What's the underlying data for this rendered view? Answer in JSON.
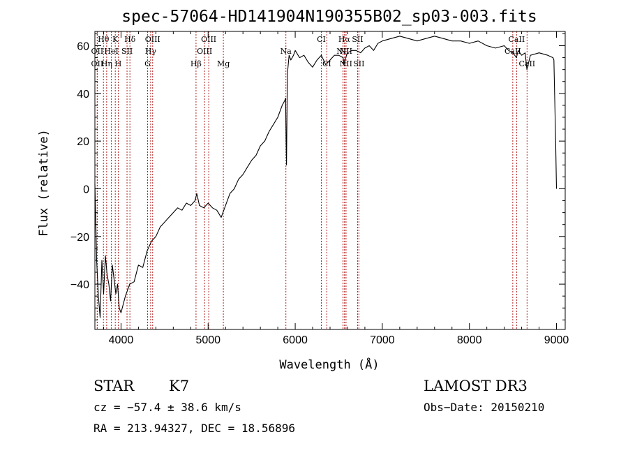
{
  "chart_data": {
    "type": "line",
    "title": "spec-57064-HD141904N190355B02_sp03-003.fits",
    "xlabel": "Wavelength (Å)",
    "ylabel": "Flux (relative)",
    "xlim": [
      3700,
      9100
    ],
    "ylim": [
      -59,
      66
    ],
    "xticks": [
      4000,
      5000,
      6000,
      7000,
      8000,
      9000
    ],
    "yticks": [
      -40,
      -20,
      0,
      20,
      40,
      60
    ],
    "grid": false,
    "series": [
      {
        "x": [
          3700,
          3720,
          3740,
          3760,
          3780,
          3800,
          3820,
          3840,
          3860,
          3880,
          3900,
          3920,
          3940,
          3960,
          3980,
          4000,
          4050,
          4100,
          4150,
          4200,
          4250,
          4300,
          4350,
          4400,
          4450,
          4500,
          4550,
          4600,
          4650,
          4700,
          4750,
          4800,
          4850,
          4870,
          4900,
          4950,
          5000,
          5050,
          5100,
          5150,
          5200,
          5250,
          5300,
          5350,
          5400,
          5450,
          5500,
          5550,
          5600,
          5650,
          5700,
          5750,
          5800,
          5850,
          5880,
          5890,
          5895,
          5900,
          5910,
          5930,
          5950,
          5980,
          6000,
          6050,
          6100,
          6150,
          6200,
          6250,
          6300,
          6350,
          6400,
          6450,
          6500,
          6550,
          6560,
          6570,
          6600,
          6650,
          6700,
          6750,
          6800,
          6850,
          6900,
          6950,
          7000,
          7100,
          7200,
          7300,
          7400,
          7500,
          7600,
          7700,
          7800,
          7900,
          8000,
          8100,
          8200,
          8300,
          8400,
          8450,
          8500,
          8540,
          8560,
          8600,
          8640,
          8660,
          8700,
          8800,
          8900,
          8960,
          8970,
          8990,
          9000
        ],
        "y": [
          2,
          -30,
          -45,
          -54,
          -30,
          -44,
          -28,
          -36,
          -40,
          -47,
          -32,
          -38,
          -44,
          -40,
          -50,
          -52,
          -45,
          -40,
          -39,
          -32,
          -33,
          -26,
          -22,
          -20,
          -16,
          -14,
          -12,
          -10,
          -8,
          -9,
          -6,
          -7,
          -5,
          -2,
          -7,
          -8,
          -6,
          -8,
          -9,
          -12,
          -7,
          -2,
          0,
          4,
          6,
          9,
          12,
          14,
          18,
          20,
          24,
          27,
          30,
          35,
          37,
          38,
          20,
          10,
          48,
          56,
          54,
          56,
          58,
          55,
          56,
          53,
          51,
          54,
          56,
          52,
          54,
          56,
          56,
          55,
          52,
          54,
          57,
          58,
          58,
          57,
          59,
          60,
          58,
          61,
          62,
          63,
          64,
          63,
          62,
          63,
          64,
          63,
          62,
          62,
          61,
          62,
          60,
          59,
          60,
          58,
          57,
          55,
          58,
          56,
          57,
          50,
          56,
          57,
          56,
          55,
          54,
          20,
          0
        ]
      }
    ],
    "lines": [
      {
        "label": "Hθ",
        "x": 3798,
        "row": 1
      },
      {
        "label": "OII",
        "x": 3727,
        "row": 2
      },
      {
        "label": "OII",
        "x": 3727,
        "row": 3
      },
      {
        "label": "HeI",
        "x": 3889,
        "row": 2
      },
      {
        "label": "Hη",
        "x": 3835,
        "row": 3
      },
      {
        "label": "K",
        "x": 3934,
        "row": 1
      },
      {
        "label": "H",
        "x": 3969,
        "row": 3
      },
      {
        "label": "SII",
        "x": 4069,
        "row": 2
      },
      {
        "label": "Hδ",
        "x": 4102,
        "row": 1
      },
      {
        "label": "OIII",
        "x": 4363,
        "row": 1
      },
      {
        "label": "Hγ",
        "x": 4340,
        "row": 2
      },
      {
        "label": "G",
        "x": 4305,
        "row": 3
      },
      {
        "label": "OIII",
        "x": 5007,
        "row": 1
      },
      {
        "label": "OIII",
        "x": 4959,
        "row": 2
      },
      {
        "label": "Hβ",
        "x": 4861,
        "row": 3
      },
      {
        "label": "Mg",
        "x": 5175,
        "row": 3
      },
      {
        "label": "Na",
        "x": 5893,
        "row": 2
      },
      {
        "label": "CI",
        "x": 6300,
        "row": 1
      },
      {
        "label": "CI",
        "x": 6363,
        "row": 3
      },
      {
        "label": "Hα",
        "x": 6563,
        "row": 1
      },
      {
        "label": "SII",
        "x": 6716,
        "row": 1
      },
      {
        "label": "NII",
        "x": 6548,
        "row": 2
      },
      {
        "label": "NII",
        "x": 6583,
        "row": 2
      },
      {
        "label": "NII",
        "x": 6583,
        "row": 3
      },
      {
        "label": "SII",
        "x": 6731,
        "row": 3
      },
      {
        "label": "CaII",
        "x": 8542,
        "row": 1
      },
      {
        "label": "CaII",
        "x": 8498,
        "row": 2
      },
      {
        "label": "CaII",
        "x": 8662,
        "row": 3
      }
    ]
  },
  "info": {
    "class_label": "STAR",
    "subclass": "K7",
    "survey": "LAMOST DR3",
    "cz": "cz = −57.4 ± 38.6 km/s",
    "obs_date": "Obs−Date: 20150210",
    "radec": "RA = 213.94327, DEC =  18.56896"
  },
  "colors": {
    "spectrum": "#000000",
    "line_marker": "#b22222",
    "axes": "#000000",
    "background": "#ffffff"
  }
}
